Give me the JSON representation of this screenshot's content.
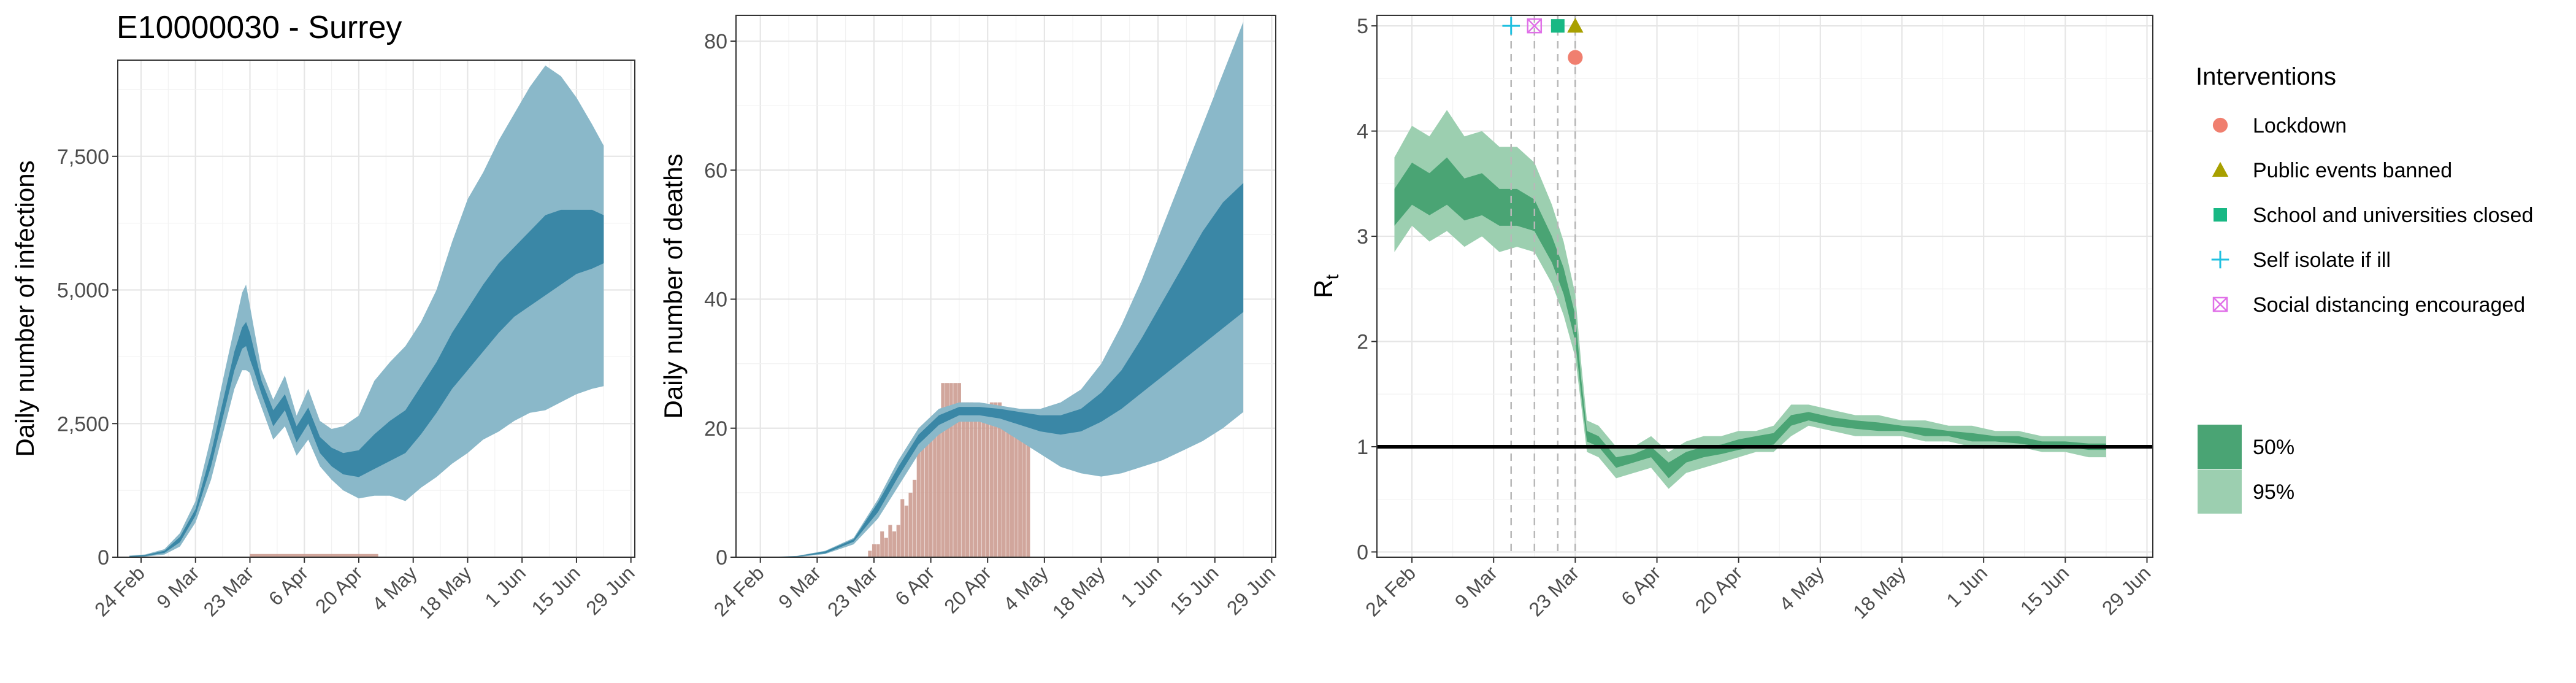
{
  "figure_title": "E10000030 - Surrey",
  "colors": {
    "infections_band95": "#8ab8c9",
    "infections_band50": "#3a87a6",
    "infections_line": "#2f7f9e",
    "deaths_bar": "#c9978b",
    "rt_band95": "#9ccfb0",
    "rt_band50": "#4aa474",
    "lockdown": "#f07f6f",
    "public_events": "#a8a000",
    "school": "#18b884",
    "self_isolate": "#1fc0e0",
    "social_distancing": "#e070e8"
  },
  "chart_data": [
    {
      "type": "area",
      "name": "infections",
      "title": "E10000030 - Surrey",
      "xlabel": "",
      "ylabel": "Daily number of infections",
      "xlim": [
        "2020-02-18",
        "2020-06-30"
      ],
      "ylim": [
        0,
        9300
      ],
      "y_ticks": [
        0,
        2500,
        5000,
        7500
      ],
      "y_tick_labels": [
        "0",
        "2,500",
        "5,000",
        "7,500"
      ],
      "x_ticks": [
        "2020-02-24",
        "2020-03-09",
        "2020-03-23",
        "2020-04-06",
        "2020-04-20",
        "2020-05-04",
        "2020-05-18",
        "2020-06-01",
        "2020-06-15",
        "2020-06-29"
      ],
      "x_tick_labels": [
        "24 Feb",
        "9 Mar",
        "23 Mar",
        "6 Apr",
        "20 Apr",
        "4 May",
        "18 May",
        "1 Jun",
        "15 Jun",
        "29 Jun"
      ],
      "grid": true,
      "x": [
        "2020-02-21",
        "2020-02-25",
        "2020-03-01",
        "2020-03-05",
        "2020-03-09",
        "2020-03-13",
        "2020-03-16",
        "2020-03-19",
        "2020-03-21",
        "2020-03-22",
        "2020-03-23",
        "2020-03-24",
        "2020-03-26",
        "2020-03-29",
        "2020-04-01",
        "2020-04-04",
        "2020-04-07",
        "2020-04-10",
        "2020-04-13",
        "2020-04-16",
        "2020-04-20",
        "2020-04-24",
        "2020-04-28",
        "2020-05-02",
        "2020-05-06",
        "2020-05-10",
        "2020-05-14",
        "2020-05-18",
        "2020-05-22",
        "2020-05-26",
        "2020-05-30",
        "2020-06-03",
        "2020-06-07",
        "2020-06-11",
        "2020-06-15",
        "2020-06-19",
        "2020-06-22"
      ],
      "series": [
        {
          "name": "95%",
          "lower": [
            0,
            10,
            50,
            200,
            650,
            1450,
            2300,
            3150,
            3500,
            3500,
            3450,
            3200,
            2800,
            2200,
            2450,
            1900,
            2200,
            1700,
            1450,
            1250,
            1100,
            1150,
            1150,
            1050,
            1300,
            1500,
            1750,
            1950,
            2200,
            2350,
            2550,
            2700,
            2750,
            2900,
            3050,
            3150,
            3200
          ],
          "upper": [
            30,
            50,
            150,
            450,
            1050,
            2250,
            3300,
            4300,
            4950,
            5100,
            4700,
            4300,
            3500,
            2950,
            3400,
            2650,
            3150,
            2550,
            2400,
            2450,
            2650,
            3300,
            3650,
            3950,
            4400,
            5000,
            5900,
            6700,
            7200,
            7800,
            8300,
            8800,
            9200,
            9000,
            8600,
            8100,
            7700
          ]
        },
        {
          "name": "50%",
          "lower": [
            5,
            20,
            80,
            280,
            780,
            1700,
            2600,
            3500,
            3900,
            3950,
            3700,
            3500,
            3050,
            2450,
            2750,
            2150,
            2500,
            1950,
            1700,
            1550,
            1500,
            1650,
            1800,
            1950,
            2300,
            2700,
            3150,
            3500,
            3850,
            4200,
            4500,
            4700,
            4900,
            5100,
            5300,
            5400,
            5500
          ],
          "upper": [
            20,
            40,
            120,
            380,
            900,
            1950,
            2900,
            3850,
            4300,
            4400,
            4200,
            3900,
            3300,
            2750,
            3050,
            2450,
            2800,
            2250,
            2050,
            1950,
            2000,
            2300,
            2550,
            2750,
            3200,
            3650,
            4200,
            4650,
            5100,
            5500,
            5800,
            6100,
            6400,
            6500,
            6500,
            6500,
            6400
          ]
        }
      ],
      "bars": {
        "name": "reported cases",
        "x_range": [
          "2020-03-23",
          "2020-04-25"
        ],
        "value": 60
      }
    },
    {
      "type": "area",
      "name": "deaths",
      "xlabel": "",
      "ylabel": "Daily number of deaths",
      "xlim": [
        "2020-02-18",
        "2020-06-30"
      ],
      "ylim": [
        0,
        84
      ],
      "y_ticks": [
        0,
        20,
        40,
        60,
        80
      ],
      "y_tick_labels": [
        "0",
        "20",
        "40",
        "60",
        "80"
      ],
      "x_ticks": [
        "2020-02-24",
        "2020-03-09",
        "2020-03-23",
        "2020-04-06",
        "2020-04-20",
        "2020-05-04",
        "2020-05-18",
        "2020-06-01",
        "2020-06-15",
        "2020-06-29"
      ],
      "x_tick_labels": [
        "24 Feb",
        "9 Mar",
        "23 Mar",
        "6 Apr",
        "20 Apr",
        "4 May",
        "18 May",
        "1 Jun",
        "15 Jun",
        "29 Jun"
      ],
      "grid": true,
      "bars": {
        "x": [
          "2020-03-22",
          "2020-03-23",
          "2020-03-24",
          "2020-03-25",
          "2020-03-26",
          "2020-03-27",
          "2020-03-28",
          "2020-03-29",
          "2020-03-30",
          "2020-03-31",
          "2020-04-01",
          "2020-04-02",
          "2020-04-03",
          "2020-04-04",
          "2020-04-05",
          "2020-04-06",
          "2020-04-07",
          "2020-04-08",
          "2020-04-09",
          "2020-04-10",
          "2020-04-11",
          "2020-04-12",
          "2020-04-13",
          "2020-04-14",
          "2020-04-15",
          "2020-04-16",
          "2020-04-17",
          "2020-04-18",
          "2020-04-19",
          "2020-04-20",
          "2020-04-21",
          "2020-04-22",
          "2020-04-23",
          "2020-04-24",
          "2020-04-25",
          "2020-04-26",
          "2020-04-27",
          "2020-04-28",
          "2020-04-29",
          "2020-04-30"
        ],
        "values": [
          1,
          2,
          2,
          4,
          3,
          5,
          4,
          5,
          9,
          8,
          10,
          12,
          17,
          17,
          20,
          20,
          20,
          21,
          27,
          27,
          27,
          27,
          27,
          24,
          24,
          24,
          22,
          22,
          22,
          22,
          24,
          24,
          24,
          22,
          22,
          20,
          20,
          20,
          20,
          20
        ]
      },
      "x": [
        "2020-02-25",
        "2020-03-04",
        "2020-03-11",
        "2020-03-18",
        "2020-03-24",
        "2020-03-29",
        "2020-04-03",
        "2020-04-08",
        "2020-04-13",
        "2020-04-18",
        "2020-04-23",
        "2020-04-28",
        "2020-05-03",
        "2020-05-08",
        "2020-05-13",
        "2020-05-18",
        "2020-05-23",
        "2020-05-28",
        "2020-06-02",
        "2020-06-07",
        "2020-06-12",
        "2020-06-17",
        "2020-06-22"
      ],
      "series": [
        {
          "name": "95%",
          "lower": [
            0,
            0,
            0.5,
            2,
            6,
            11,
            16,
            19,
            21,
            21,
            20,
            18,
            16,
            14,
            13,
            12.5,
            13,
            14,
            15,
            16.5,
            18,
            20,
            22.5
          ],
          "upper": [
            0,
            0.2,
            1,
            3,
            9,
            15,
            20,
            23,
            24,
            24,
            23.5,
            23,
            23,
            24,
            26,
            30,
            36,
            43,
            51,
            59,
            67,
            75,
            83
          ]
        },
        {
          "name": "50%",
          "lower": [
            0,
            0.1,
            0.6,
            2.4,
            7,
            12.5,
            17.5,
            20.5,
            22,
            22,
            21.5,
            20.5,
            19.5,
            19,
            19.5,
            21,
            23,
            25.5,
            28,
            30.5,
            33,
            35.5,
            38
          ],
          "upper": [
            0,
            0.15,
            0.9,
            2.8,
            8.5,
            14,
            19,
            22,
            23.3,
            23.3,
            23,
            22.5,
            22,
            22,
            23,
            25.5,
            29,
            34,
            39.5,
            45,
            50.5,
            55,
            58
          ]
        }
      ]
    },
    {
      "type": "area",
      "name": "rt",
      "xlabel": "",
      "ylabel": "Rt",
      "ylabel_main": "R",
      "ylabel_sub": "t",
      "xlim": [
        "2020-02-18",
        "2020-06-30"
      ],
      "ylim": [
        -0.05,
        5.1
      ],
      "y_ticks": [
        0,
        1,
        2,
        3,
        4,
        5
      ],
      "y_tick_labels": [
        "0",
        "1",
        "2",
        "3",
        "4",
        "5"
      ],
      "x_ticks": [
        "2020-02-24",
        "2020-03-09",
        "2020-03-23",
        "2020-04-06",
        "2020-04-20",
        "2020-05-04",
        "2020-05-18",
        "2020-06-01",
        "2020-06-15",
        "2020-06-29"
      ],
      "x_tick_labels": [
        "24 Feb",
        "9 Mar",
        "23 Mar",
        "6 Apr",
        "20 Apr",
        "4 May",
        "18 May",
        "1 Jun",
        "15 Jun",
        "29 Jun"
      ],
      "grid": true,
      "reference_line": 1,
      "x": [
        "2020-02-21",
        "2020-02-24",
        "2020-02-27",
        "2020-03-01",
        "2020-03-04",
        "2020-03-07",
        "2020-03-10",
        "2020-03-13",
        "2020-03-16",
        "2020-03-19",
        "2020-03-21",
        "2020-03-23",
        "2020-03-24",
        "2020-03-25",
        "2020-03-27",
        "2020-03-30",
        "2020-04-02",
        "2020-04-05",
        "2020-04-08",
        "2020-04-11",
        "2020-04-14",
        "2020-04-17",
        "2020-04-20",
        "2020-04-23",
        "2020-04-26",
        "2020-04-29",
        "2020-05-02",
        "2020-05-06",
        "2020-05-10",
        "2020-05-14",
        "2020-05-18",
        "2020-05-22",
        "2020-05-26",
        "2020-05-30",
        "2020-06-03",
        "2020-06-07",
        "2020-06-11",
        "2020-06-15",
        "2020-06-19",
        "2020-06-22"
      ],
      "series": [
        {
          "name": "95%",
          "lower": [
            2.85,
            3.1,
            2.95,
            3.05,
            2.9,
            3.0,
            2.85,
            2.9,
            2.85,
            2.55,
            2.25,
            1.85,
            1.4,
            0.95,
            0.9,
            0.7,
            0.75,
            0.8,
            0.6,
            0.75,
            0.8,
            0.85,
            0.9,
            0.95,
            0.95,
            1.1,
            1.2,
            1.15,
            1.1,
            1.1,
            1.1,
            1.05,
            1.05,
            1.0,
            1.0,
            1.0,
            0.95,
            0.95,
            0.9,
            0.9
          ],
          "upper": [
            3.75,
            4.05,
            3.95,
            4.2,
            3.95,
            4.0,
            3.85,
            3.85,
            3.7,
            3.3,
            2.95,
            2.45,
            1.8,
            1.25,
            1.2,
            1.0,
            1.0,
            1.1,
            0.95,
            1.05,
            1.1,
            1.1,
            1.15,
            1.15,
            1.2,
            1.4,
            1.4,
            1.35,
            1.3,
            1.3,
            1.25,
            1.25,
            1.2,
            1.2,
            1.15,
            1.15,
            1.1,
            1.1,
            1.1,
            1.1
          ]
        },
        {
          "name": "50%",
          "lower": [
            3.1,
            3.3,
            3.2,
            3.3,
            3.15,
            3.2,
            3.1,
            3.1,
            3.05,
            2.75,
            2.45,
            2.0,
            1.5,
            1.05,
            1.0,
            0.8,
            0.85,
            0.9,
            0.7,
            0.85,
            0.9,
            0.93,
            0.97,
            1.0,
            1.02,
            1.2,
            1.25,
            1.2,
            1.17,
            1.15,
            1.15,
            1.1,
            1.1,
            1.05,
            1.05,
            1.03,
            1.0,
            1.0,
            0.97,
            0.97
          ],
          "upper": [
            3.45,
            3.7,
            3.6,
            3.75,
            3.55,
            3.6,
            3.45,
            3.45,
            3.35,
            3.0,
            2.7,
            2.25,
            1.65,
            1.15,
            1.1,
            0.9,
            0.93,
            1.0,
            0.85,
            0.95,
            1.0,
            1.02,
            1.07,
            1.1,
            1.13,
            1.3,
            1.33,
            1.28,
            1.25,
            1.23,
            1.2,
            1.18,
            1.15,
            1.13,
            1.1,
            1.1,
            1.05,
            1.05,
            1.03,
            1.03
          ]
        }
      ],
      "interventions": [
        {
          "name": "Lockdown",
          "date": "2020-03-23",
          "y": 4.7,
          "shape": "circle"
        },
        {
          "name": "Public events banned",
          "date": "2020-03-23",
          "y": 5.0,
          "shape": "triangle"
        },
        {
          "name": "School and universities closed",
          "date": "2020-03-20",
          "y": 5.0,
          "shape": "square"
        },
        {
          "name": "Self isolate if ill",
          "date": "2020-03-12",
          "y": 5.0,
          "shape": "plus"
        },
        {
          "name": "Social distancing encouraged",
          "date": "2020-03-16",
          "y": 5.0,
          "shape": "boxed-x"
        }
      ]
    }
  ],
  "legend": {
    "title": "Interventions",
    "items": [
      {
        "label": "Lockdown",
        "shape": "circle"
      },
      {
        "label": "Public events banned",
        "shape": "triangle"
      },
      {
        "label": "School and universities closed",
        "shape": "square"
      },
      {
        "label": "Self isolate if ill",
        "shape": "plus"
      },
      {
        "label": "Social distancing encouraged",
        "shape": "boxed-x"
      }
    ],
    "bands": [
      {
        "label": "50%"
      },
      {
        "label": "95%"
      }
    ]
  }
}
